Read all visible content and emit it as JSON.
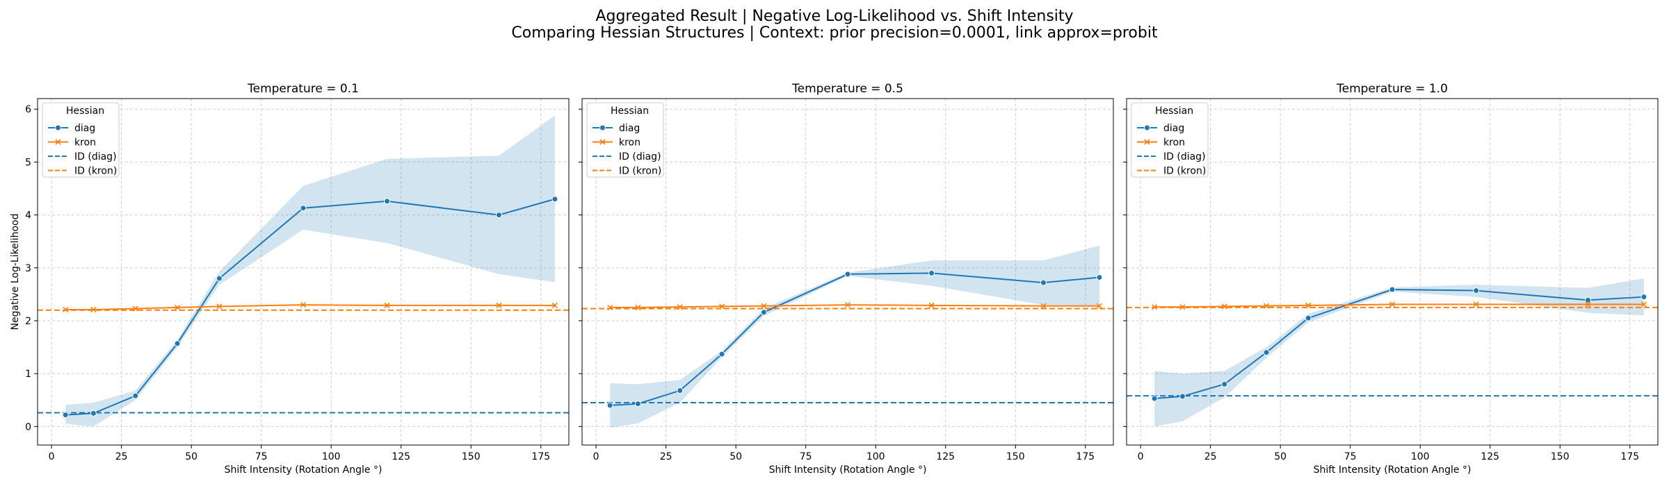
{
  "figure": {
    "title_line1": "Aggregated Result | Negative Log-Likelihood vs. Shift Intensity",
    "title_line2": "Comparing Hessian Structures | Context: prior precision=0.0001, link approx=probit"
  },
  "colors": {
    "diag": "#1f77b4",
    "kron": "#ff7f0e",
    "diag_band": "#1f77b4",
    "grid": "#b0b0b0"
  },
  "chart_data": [
    {
      "type": "line",
      "title": "Temperature = 0.1",
      "xlabel": "Shift Intensity (Rotation Angle °)",
      "ylabel": "Negative Log-Likelihood",
      "xlim": [
        -5,
        185
      ],
      "ylim": [
        -0.35,
        6.2
      ],
      "xticks": [
        0,
        25,
        50,
        75,
        100,
        125,
        150,
        175
      ],
      "yticks": [
        0,
        1,
        2,
        3,
        4,
        5,
        6
      ],
      "grid": true,
      "legend": {
        "title": "Hessian",
        "position": "top-left",
        "entries": [
          "diag",
          "kron",
          "ID (diag)",
          "ID (kron)"
        ]
      },
      "x": [
        5,
        15,
        30,
        45,
        60,
        90,
        120,
        160,
        180
      ],
      "series": [
        {
          "name": "diag",
          "marker": "o",
          "values": [
            0.22,
            0.25,
            0.58,
            1.57,
            2.8,
            4.13,
            4.26,
            4.0,
            4.3
          ],
          "band_low": [
            0.05,
            0.0,
            0.5,
            1.5,
            2.68,
            3.72,
            3.47,
            2.88,
            2.73
          ],
          "band_high": [
            0.41,
            0.45,
            0.68,
            1.64,
            2.93,
            4.55,
            5.06,
            5.12,
            5.88
          ]
        },
        {
          "name": "kron",
          "marker": "x",
          "values": [
            2.21,
            2.21,
            2.23,
            2.25,
            2.27,
            2.3,
            2.29,
            2.29,
            2.29
          ]
        }
      ],
      "hlines": [
        {
          "name": "ID (diag)",
          "value": 0.26
        },
        {
          "name": "ID (kron)",
          "value": 2.2
        }
      ]
    },
    {
      "type": "line",
      "title": "Temperature = 0.5",
      "xlabel": "Shift Intensity (Rotation Angle °)",
      "ylabel": "",
      "xlim": [
        -5,
        185
      ],
      "ylim": [
        -0.35,
        6.2
      ],
      "xticks": [
        0,
        25,
        50,
        75,
        100,
        125,
        150,
        175
      ],
      "yticks": [
        0,
        1,
        2,
        3,
        4,
        5,
        6
      ],
      "grid": true,
      "legend": {
        "title": "Hessian",
        "position": "top-left",
        "entries": [
          "diag",
          "kron",
          "ID (diag)",
          "ID (kron)"
        ]
      },
      "x": [
        5,
        15,
        30,
        45,
        60,
        90,
        120,
        160,
        180
      ],
      "series": [
        {
          "name": "diag",
          "marker": "o",
          "values": [
            0.4,
            0.43,
            0.68,
            1.37,
            2.16,
            2.88,
            2.9,
            2.72,
            2.82
          ],
          "band_low": [
            -0.02,
            0.06,
            0.45,
            1.31,
            2.09,
            2.85,
            2.66,
            2.3,
            2.28
          ],
          "band_high": [
            0.82,
            0.8,
            0.88,
            1.43,
            2.23,
            2.91,
            3.14,
            3.14,
            3.42
          ]
        },
        {
          "name": "kron",
          "marker": "x",
          "values": [
            2.25,
            2.25,
            2.26,
            2.27,
            2.28,
            2.3,
            2.29,
            2.28,
            2.28
          ]
        }
      ],
      "hlines": [
        {
          "name": "ID (diag)",
          "value": 0.45
        },
        {
          "name": "ID (kron)",
          "value": 2.23
        }
      ]
    },
    {
      "type": "line",
      "title": "Temperature = 1.0",
      "xlabel": "Shift Intensity (Rotation Angle °)",
      "ylabel": "",
      "xlim": [
        -5,
        185
      ],
      "ylim": [
        -0.35,
        6.2
      ],
      "xticks": [
        0,
        25,
        50,
        75,
        100,
        125,
        150,
        175
      ],
      "yticks": [
        0,
        1,
        2,
        3,
        4,
        5,
        6
      ],
      "grid": true,
      "legend": {
        "title": "Hessian",
        "position": "top-left",
        "entries": [
          "diag",
          "kron",
          "ID (diag)",
          "ID (kron)"
        ]
      },
      "x": [
        5,
        15,
        30,
        45,
        60,
        90,
        120,
        160,
        180
      ],
      "series": [
        {
          "name": "diag",
          "marker": "o",
          "values": [
            0.53,
            0.57,
            0.8,
            1.4,
            2.05,
            2.59,
            2.57,
            2.39,
            2.45
          ],
          "band_low": [
            0.0,
            0.1,
            0.55,
            1.3,
            1.97,
            2.55,
            2.45,
            2.15,
            2.1
          ],
          "band_high": [
            1.05,
            1.0,
            1.05,
            1.5,
            2.13,
            2.63,
            2.68,
            2.62,
            2.8
          ]
        },
        {
          "name": "kron",
          "marker": "x",
          "values": [
            2.26,
            2.26,
            2.27,
            2.28,
            2.29,
            2.31,
            2.31,
            2.31,
            2.31
          ]
        }
      ],
      "hlines": [
        {
          "name": "ID (diag)",
          "value": 0.58
        },
        {
          "name": "ID (kron)",
          "value": 2.25
        }
      ]
    }
  ]
}
